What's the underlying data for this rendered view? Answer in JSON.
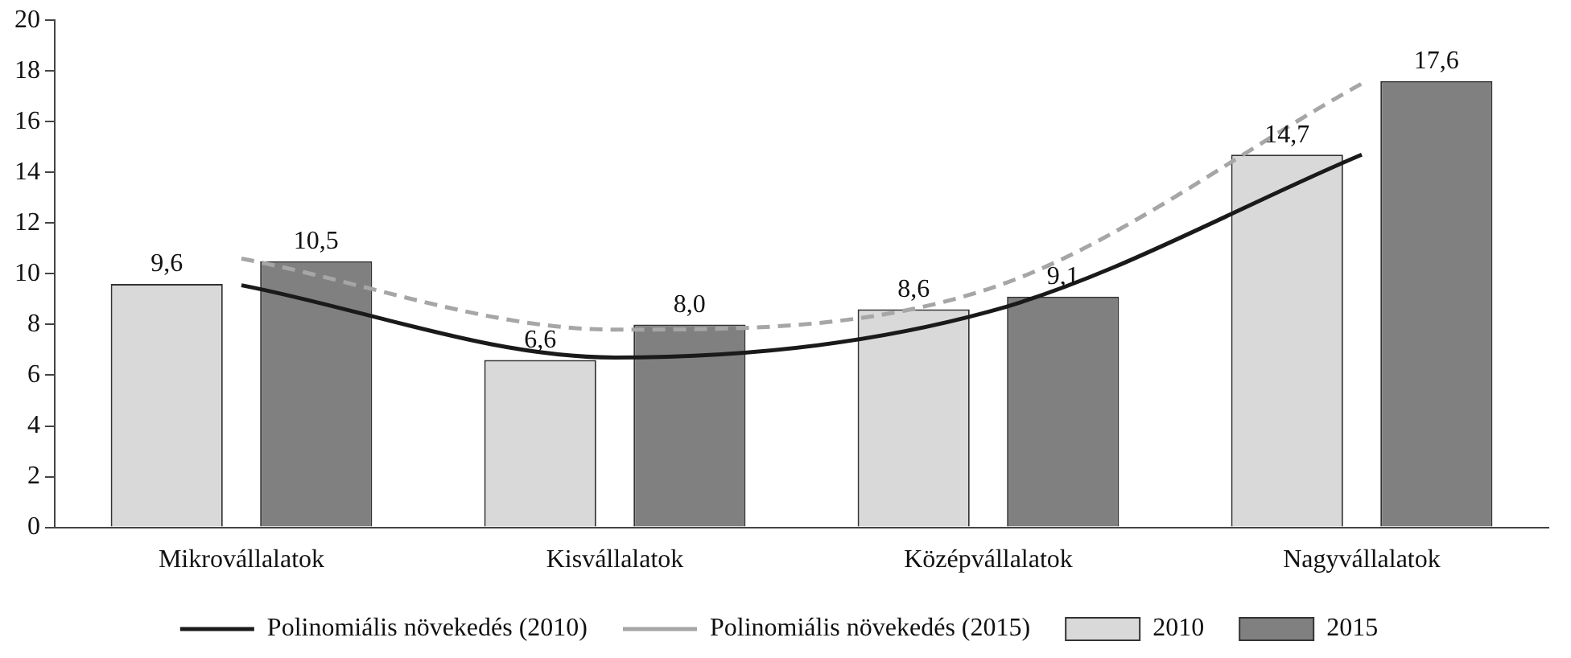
{
  "chart_data": {
    "type": "bar",
    "categories": [
      "Mikrovállalatok",
      "Kisvállalatok",
      "Középvállalatok",
      "Nagyvállalatok"
    ],
    "series": [
      {
        "name": "2010",
        "color": "#d9d9d9",
        "values": [
          9.6,
          6.6,
          8.6,
          14.7
        ],
        "value_labels": [
          "9,6",
          "6,6",
          "8,6",
          "14,7"
        ]
      },
      {
        "name": "2015",
        "color": "#808080",
        "values": [
          10.5,
          8.0,
          9.1,
          17.6
        ],
        "value_labels": [
          "10,5",
          "8,0",
          "9,1",
          "17,6"
        ]
      },
      {
        "name": "Polinomiális növekedés (2010)",
        "type": "line",
        "color": "#1a1a1a",
        "line_style": "solid",
        "x": [
          "Mikrovállalatok",
          "Kisvállalatok",
          "Középvállalatok",
          "Nagyvállalatok"
        ],
        "values": [
          9.55,
          6.7,
          8.5,
          14.7
        ]
      },
      {
        "name": "Polinomiális növekedés (2015)",
        "type": "line",
        "color": "#a6a6a6",
        "line_style": "dashed",
        "x": [
          "Mikrovállalatok",
          "Kisvállalatok",
          "Középvállalatok",
          "Nagyvállalatok"
        ],
        "values": [
          10.6,
          7.8,
          9.4,
          17.5
        ]
      }
    ],
    "ylim": [
      0,
      20
    ],
    "yticks": [
      0,
      2,
      4,
      6,
      8,
      10,
      12,
      14,
      16,
      18,
      20
    ],
    "grid": false,
    "legend": "bottom",
    "marker": "none"
  }
}
